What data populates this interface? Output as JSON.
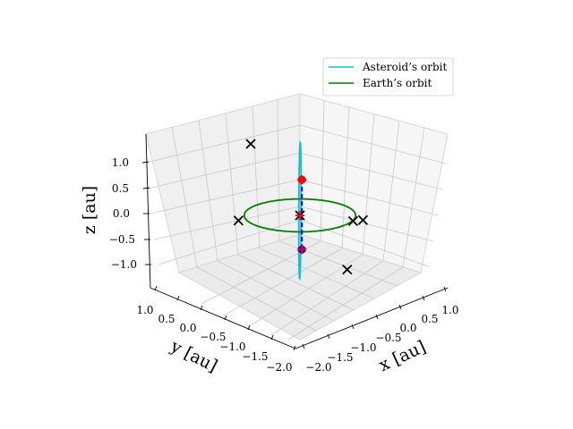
{
  "chart_data": {
    "type": "scatter",
    "projection": "3d",
    "view": {
      "elevation_deg": 20,
      "azimuth_deg": -135
    },
    "grid": true,
    "legend_placement": "top-right",
    "axes": {
      "x": {
        "label": "x [au]",
        "lim": [
          -2.0,
          1.0
        ],
        "ticks": [
          -2.0,
          -1.5,
          -1.0,
          -0.5,
          0.0,
          0.5,
          1.0
        ],
        "tick_labels": [
          "−2.0",
          "−1.5",
          "−1.0",
          "−0.5",
          "0.0",
          "0.5",
          "1.0"
        ]
      },
      "y": {
        "label": "y [au]",
        "lim": [
          -2.0,
          1.0
        ],
        "ticks": [
          1.0,
          0.5,
          0.0,
          -0.5,
          -1.0,
          -1.5,
          -2.0
        ],
        "tick_labels": [
          "1.0",
          "0.5",
          "0.0",
          "−0.5",
          "−1.0",
          "−1.5",
          "−2.0"
        ]
      },
      "z": {
        "label": "z [au]",
        "lim": [
          -1.35,
          1.4
        ],
        "ticks": [
          -1.0,
          -0.5,
          0.0,
          0.5,
          1.0
        ],
        "tick_labels": [
          "−1.0",
          "−0.5",
          "0.0",
          "0.5",
          "1.0"
        ]
      }
    },
    "series": [
      {
        "name": "Asteroid's orbit",
        "kind": "line",
        "color": "#17becf",
        "shape": "ellipse",
        "center": [
          -0.21,
          -0.21,
          0.0
        ],
        "semi_axes": [
          0.12,
          0.7,
          1.3
        ]
      },
      {
        "name": "Earth's orbit",
        "kind": "line",
        "color": "#008000",
        "shape": "circle",
        "center": [
          0.0,
          0.0,
          0.0
        ],
        "radius": 1.0
      }
    ],
    "markers": [
      {
        "kind": "cross",
        "color": "#000000",
        "points": [
          [
            0.0,
            0.0,
            0.0
          ],
          [
            -0.85,
            0.4,
            1.3
          ],
          [
            -0.56,
            1.0,
            0.0
          ],
          [
            1.0,
            -0.6,
            0.0
          ],
          [
            0.7,
            -0.65,
            -0.1
          ],
          [
            0.3,
            -0.9,
            -1.2
          ]
        ]
      },
      {
        "kind": "dot",
        "color": "#ff0000",
        "points": [
          [
            -0.15,
            -0.2,
            0.62
          ]
        ]
      },
      {
        "kind": "dot",
        "color": "#0000ff",
        "points": [
          [
            -0.15,
            -0.2,
            -0.75
          ]
        ]
      },
      {
        "kind": "plus",
        "color": "#ff0000",
        "points": [
          [
            -0.15,
            -0.2,
            0.62
          ],
          [
            0.0,
            0.0,
            0.0
          ],
          [
            -0.15,
            -0.2,
            -0.75
          ]
        ]
      }
    ],
    "connector": {
      "style": "dashed",
      "color": "#0000ff",
      "from": [
        -0.15,
        -0.2,
        0.62
      ],
      "to": [
        -0.15,
        -0.2,
        -0.75
      ]
    }
  },
  "legend": {
    "asteroid_label": "Asteroid’s orbit",
    "earth_label": "Earth’s orbit",
    "asteroid_color": "#17becf",
    "earth_color": "#008000"
  }
}
